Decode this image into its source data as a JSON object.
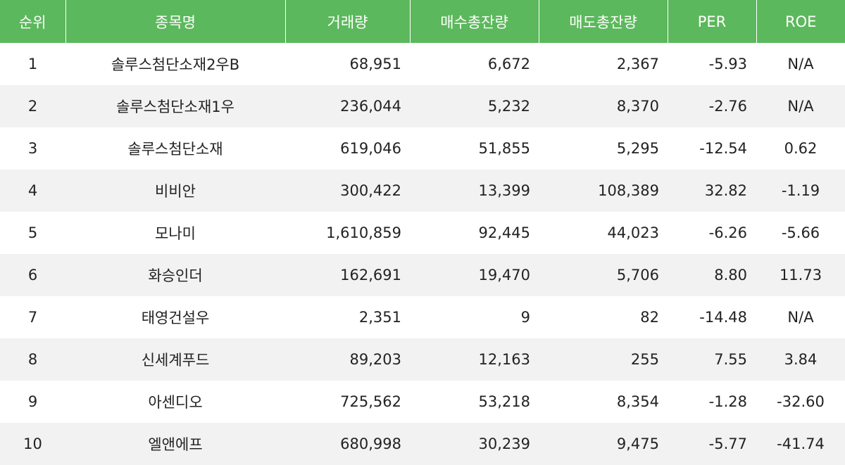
{
  "header": {
    "rank": "순위",
    "name": "종목명",
    "volume": "거래량",
    "buy_balance": "매수총잔량",
    "sell_balance": "매도총잔량",
    "per": "PER",
    "roe": "ROE"
  },
  "rows": [
    {
      "rank": "1",
      "name": "솔루스첨단소재2우B",
      "volume": "68,951",
      "buy": "6,672",
      "sell": "2,367",
      "per": "-5.93",
      "roe": "N/A"
    },
    {
      "rank": "2",
      "name": "솔루스첨단소재1우",
      "volume": "236,044",
      "buy": "5,232",
      "sell": "8,370",
      "per": "-2.76",
      "roe": "N/A"
    },
    {
      "rank": "3",
      "name": "솔루스첨단소재",
      "volume": "619,046",
      "buy": "51,855",
      "sell": "5,295",
      "per": "-12.54",
      "roe": "0.62"
    },
    {
      "rank": "4",
      "name": "비비안",
      "volume": "300,422",
      "buy": "13,399",
      "sell": "108,389",
      "per": "32.82",
      "roe": "-1.19"
    },
    {
      "rank": "5",
      "name": "모나미",
      "volume": "1,610,859",
      "buy": "92,445",
      "sell": "44,023",
      "per": "-6.26",
      "roe": "-5.66"
    },
    {
      "rank": "6",
      "name": "화승인더",
      "volume": "162,691",
      "buy": "19,470",
      "sell": "5,706",
      "per": "8.80",
      "roe": "11.73"
    },
    {
      "rank": "7",
      "name": "태영건설우",
      "volume": "2,351",
      "buy": "9",
      "sell": "82",
      "per": "-14.48",
      "roe": "N/A"
    },
    {
      "rank": "8",
      "name": "신세계푸드",
      "volume": "89,203",
      "buy": "12,163",
      "sell": "255",
      "per": "7.55",
      "roe": "3.84"
    },
    {
      "rank": "9",
      "name": "아센디오",
      "volume": "725,562",
      "buy": "53,218",
      "sell": "8,354",
      "per": "-1.28",
      "roe": "-32.60"
    },
    {
      "rank": "10",
      "name": "엘앤에프",
      "volume": "680,998",
      "buy": "30,239",
      "sell": "9,475",
      "per": "-5.77",
      "roe": "-41.74"
    }
  ]
}
